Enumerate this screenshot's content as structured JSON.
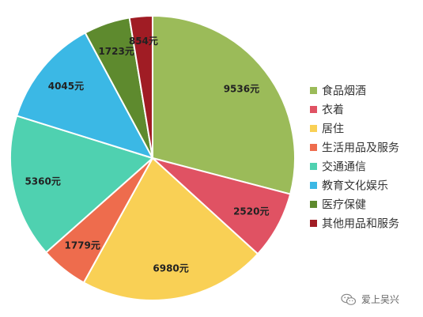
{
  "chart_data": {
    "type": "pie",
    "title": "",
    "legend_position": "right",
    "slices": [
      {
        "label": "食品烟酒",
        "value": 9536,
        "value_label": "9536元",
        "color": "#9BBB59"
      },
      {
        "label": "衣着",
        "value": 2520,
        "value_label": "2520元",
        "color": "#E05263"
      },
      {
        "label": "居住",
        "value": 6980,
        "value_label": "6980元",
        "color": "#F9D055"
      },
      {
        "label": "生活用品及服务",
        "value": 1779,
        "value_label": "1779元",
        "color": "#EE6C4D"
      },
      {
        "label": "交通通信",
        "value": 5360,
        "value_label": "5360元",
        "color": "#4FD1B0"
      },
      {
        "label": "教育文化娱乐",
        "value": 4045,
        "value_label": "4045元",
        "color": "#3BB8E5"
      },
      {
        "label": "医疗保健",
        "value": 1723,
        "value_label": "1723元",
        "color": "#5E8A2E"
      },
      {
        "label": "其他用品和服务",
        "value": 854,
        "value_label": "854元",
        "color": "#A01C24"
      }
    ]
  },
  "watermark": {
    "text": "爱上吴兴",
    "icon": "wechat-icon"
  }
}
